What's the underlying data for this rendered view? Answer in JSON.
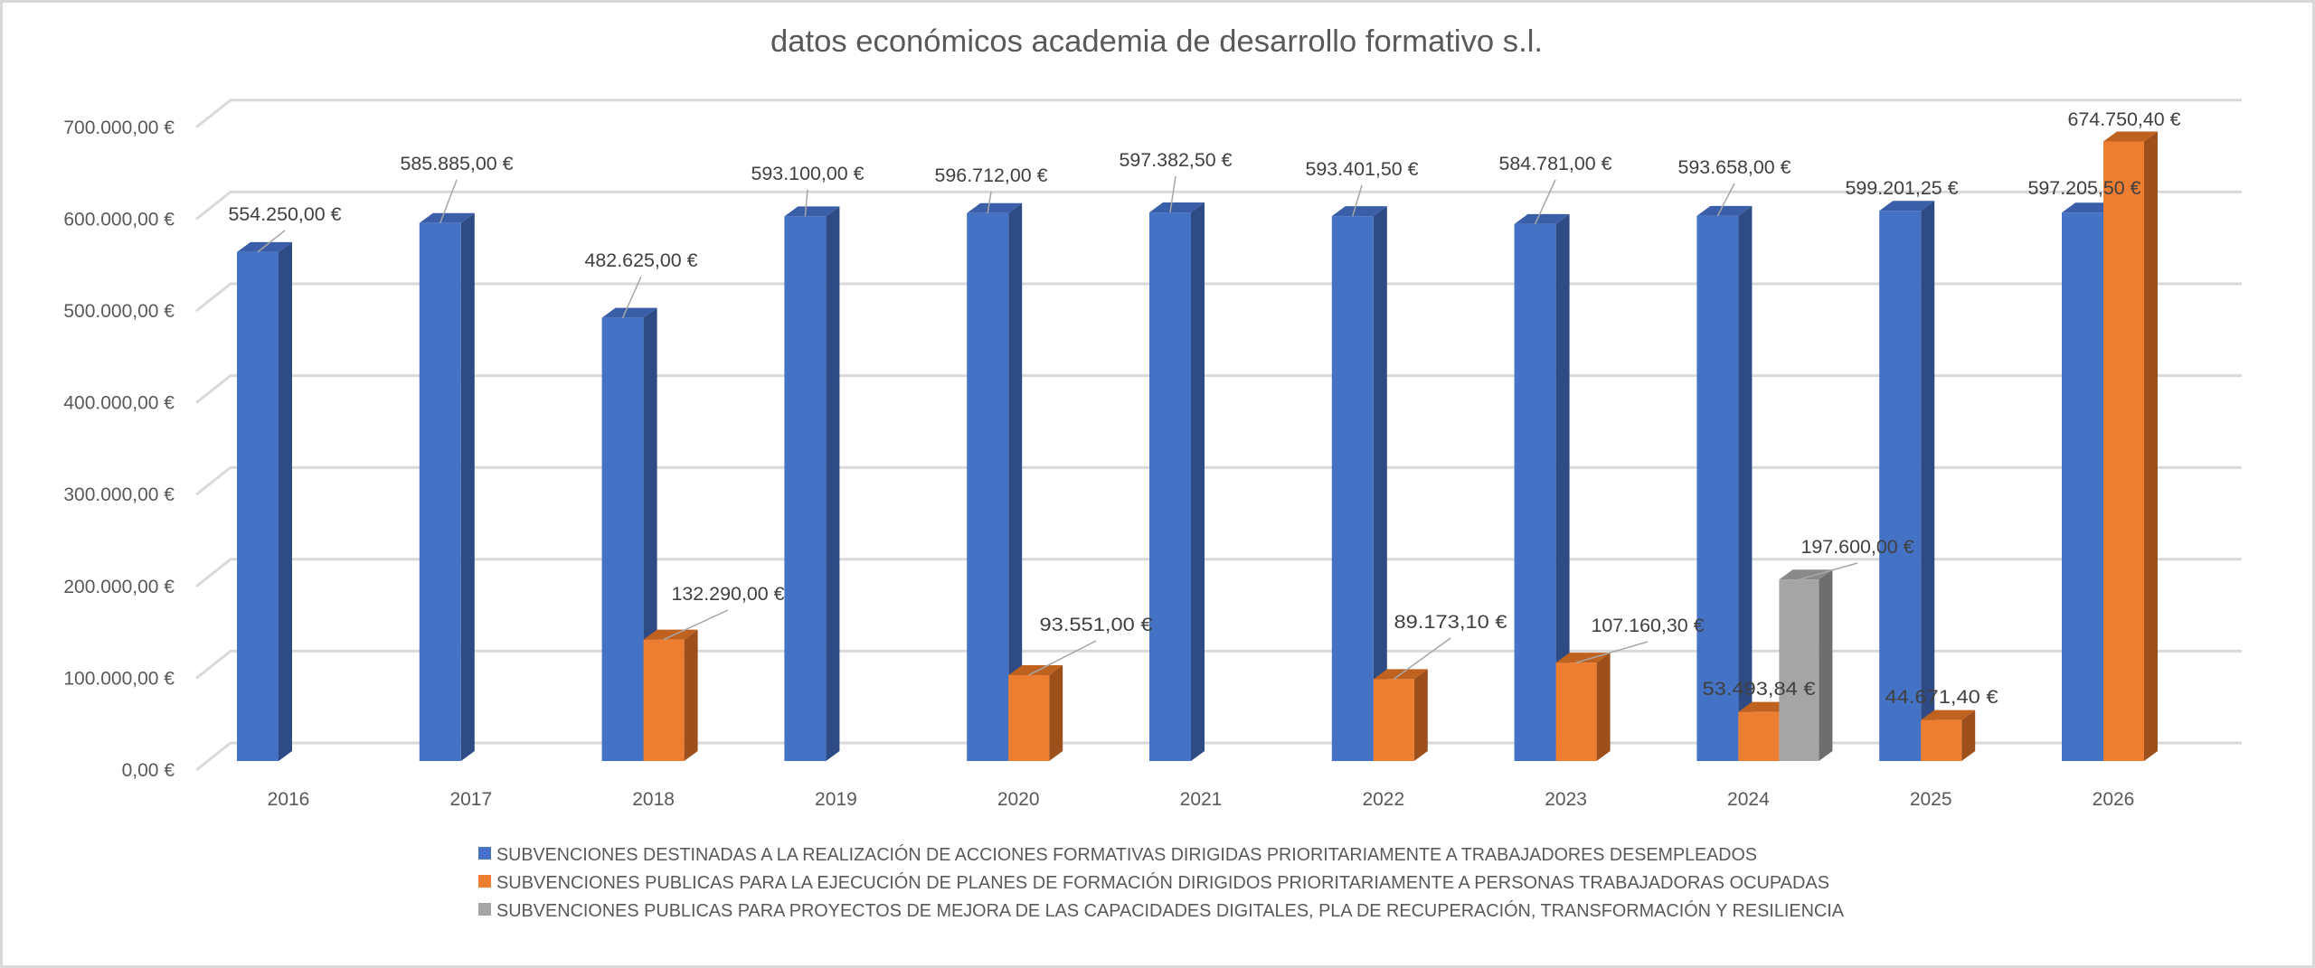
{
  "chart_data": {
    "type": "bar",
    "style": "3d-clustered-column",
    "title": "datos económicos academia de desarrollo formativo s.l.",
    "xlabel": "",
    "ylabel": "",
    "ylim": [
      0,
      700000
    ],
    "y_ticks": [
      0,
      100000,
      200000,
      300000,
      400000,
      500000,
      600000,
      700000
    ],
    "y_tick_labels": [
      "0,00 €",
      "100.000,00 €",
      "200.000,00 €",
      "300.000,00 €",
      "400.000,00 €",
      "500.000,00 €",
      "600.000,00 €",
      "700.000,00 €"
    ],
    "grid": true,
    "legend_position": "bottom",
    "categories": [
      "2016",
      "2017",
      "2018",
      "2019",
      "2020",
      "2021",
      "2022",
      "2023",
      "2024",
      "2025",
      "2026"
    ],
    "series": [
      {
        "name": "SUBVENCIONES DESTINADAS A LA REALIZACIÓN DE ACCIONES FORMATIVAS DIRIGIDAS PRIORITARIAMENTE A TRABAJADORES DESEMPLEADOS",
        "color": "#4472c4",
        "values": [
          554250.0,
          585885.0,
          482625.0,
          593100.0,
          596712.0,
          597382.5,
          593401.5,
          584781.0,
          593658.0,
          599201.25,
          597205.5
        ],
        "labels": [
          "554.250,00 €",
          "585.885,00 €",
          "482.625,00 €",
          "593.100,00 €",
          "596.712,00 €",
          "597.382,50 €",
          "593.401,50 €",
          "584.781,00 €",
          "593.658,00 €",
          "599.201,25 €",
          "597.205,50 €"
        ]
      },
      {
        "name": "SUBVENCIONES PUBLICAS PARA LA EJECUCIÓN DE PLANES DE FORMACIÓN DIRIGIDOS PRIORITARIAMENTE A PERSONAS TRABAJADORAS OCUPADAS",
        "color": "#ed7d31",
        "values": [
          null,
          null,
          132290.0,
          null,
          93551.0,
          null,
          89173.1,
          107160.3,
          53493.84,
          44671.4,
          674750.4
        ],
        "labels": [
          null,
          null,
          "132.290,00 €",
          null,
          "93.551,00 €",
          null,
          "89.173,10 €",
          "107.160,30 €",
          "53.493,84 €",
          "44.671,40 €",
          "674.750,40 €"
        ]
      },
      {
        "name": "SUBVENCIONES PUBLICAS PARA PROYECTOS DE  MEJORA DE LAS CAPACIDADES DIGITALES, PLA DE RECUPERACIÓN, TRANSFORMACIÓN Y RESILIENCIA",
        "color": "#a5a5a5",
        "values": [
          null,
          null,
          null,
          null,
          null,
          null,
          null,
          null,
          197600.0,
          null,
          null
        ],
        "labels": [
          null,
          null,
          null,
          null,
          null,
          null,
          null,
          null,
          "197.600,00 €",
          null,
          null
        ]
      }
    ]
  }
}
